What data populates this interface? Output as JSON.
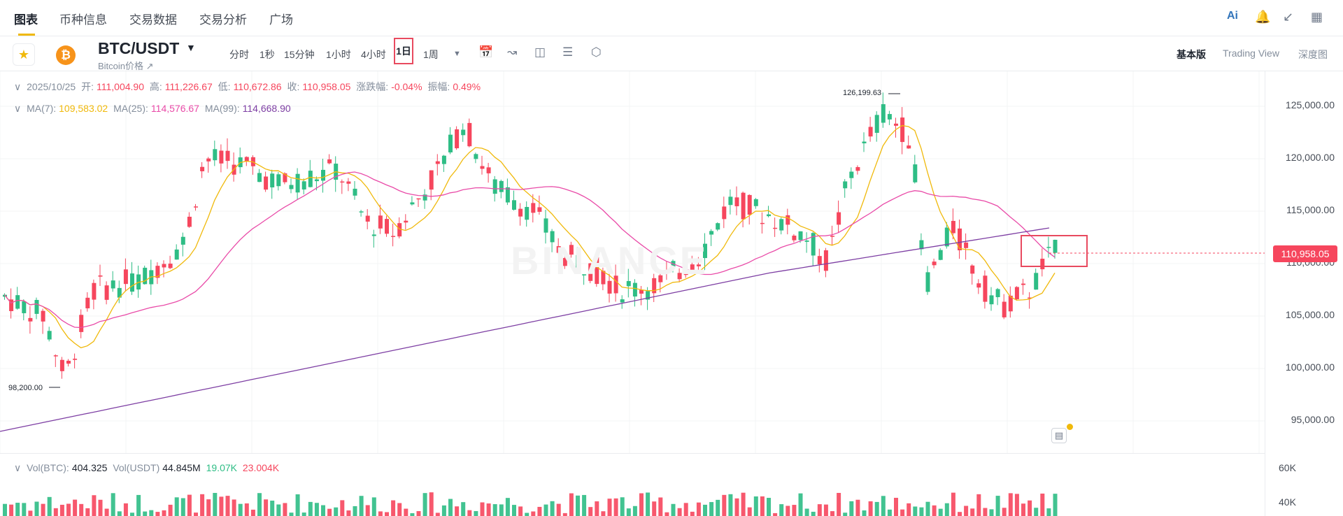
{
  "nav": {
    "tabs": [
      "图表",
      "币种信息",
      "交易数据",
      "交易分析",
      "广场"
    ],
    "active": 0,
    "icons": [
      "ai-icon",
      "bell-icon",
      "minimize-icon",
      "layout-icon"
    ]
  },
  "toolbar": {
    "pair": "BTC/USDT",
    "pair_sub": "Bitcoin价格",
    "timeframes": [
      "分时",
      "1秒",
      "15分钟",
      "1小时",
      "4小时",
      "1日",
      "1周"
    ],
    "active_timeframe": "1日",
    "views": [
      "基本版",
      "Trading View",
      "深度图"
    ],
    "active_view": "基本版"
  },
  "ohlc": {
    "date": "2025/10/25",
    "open_label": "开:",
    "open": "111,004.90",
    "high_label": "高:",
    "high": "111,226.67",
    "low_label": "低:",
    "low": "110,672.86",
    "close_label": "收:",
    "close": "110,958.05",
    "change_label": "涨跌幅:",
    "change": "-0.04%",
    "amp_label": "振幅:",
    "amp": "0.49%"
  },
  "ma": {
    "ma7_label": "MA(7):",
    "ma7": "109,583.02",
    "ma25_label": "MA(25):",
    "ma25": "114,576.67",
    "ma99_label": "MA(99):",
    "ma99": "114,668.90"
  },
  "vol": {
    "btc_label": "Vol(BTC):",
    "btc": "404.325",
    "usdt_label": "Vol(USDT)",
    "usdt": "44.845M",
    "v1": "19.07K",
    "v2": "23.004K"
  },
  "colors": {
    "up": "#2ebd85",
    "down": "#f6465d",
    "ma7": "#f0b90b",
    "ma25": "#e94ba8",
    "ma99": "#7d3ea3"
  },
  "chart_data": {
    "type": "candlestick",
    "yticks": [
      "125,000.00",
      "120,000.00",
      "115,000.00",
      "110,000.00",
      "105,000.00",
      "100,000.00",
      "95,000.00"
    ],
    "ylim": [
      92000,
      127500
    ],
    "last_price": "110,958.05",
    "high_marker": "126,199.63",
    "low_marker": "98,200.00",
    "vol_yticks": [
      "60K",
      "40K"
    ],
    "watermark": "BINANCE"
  }
}
